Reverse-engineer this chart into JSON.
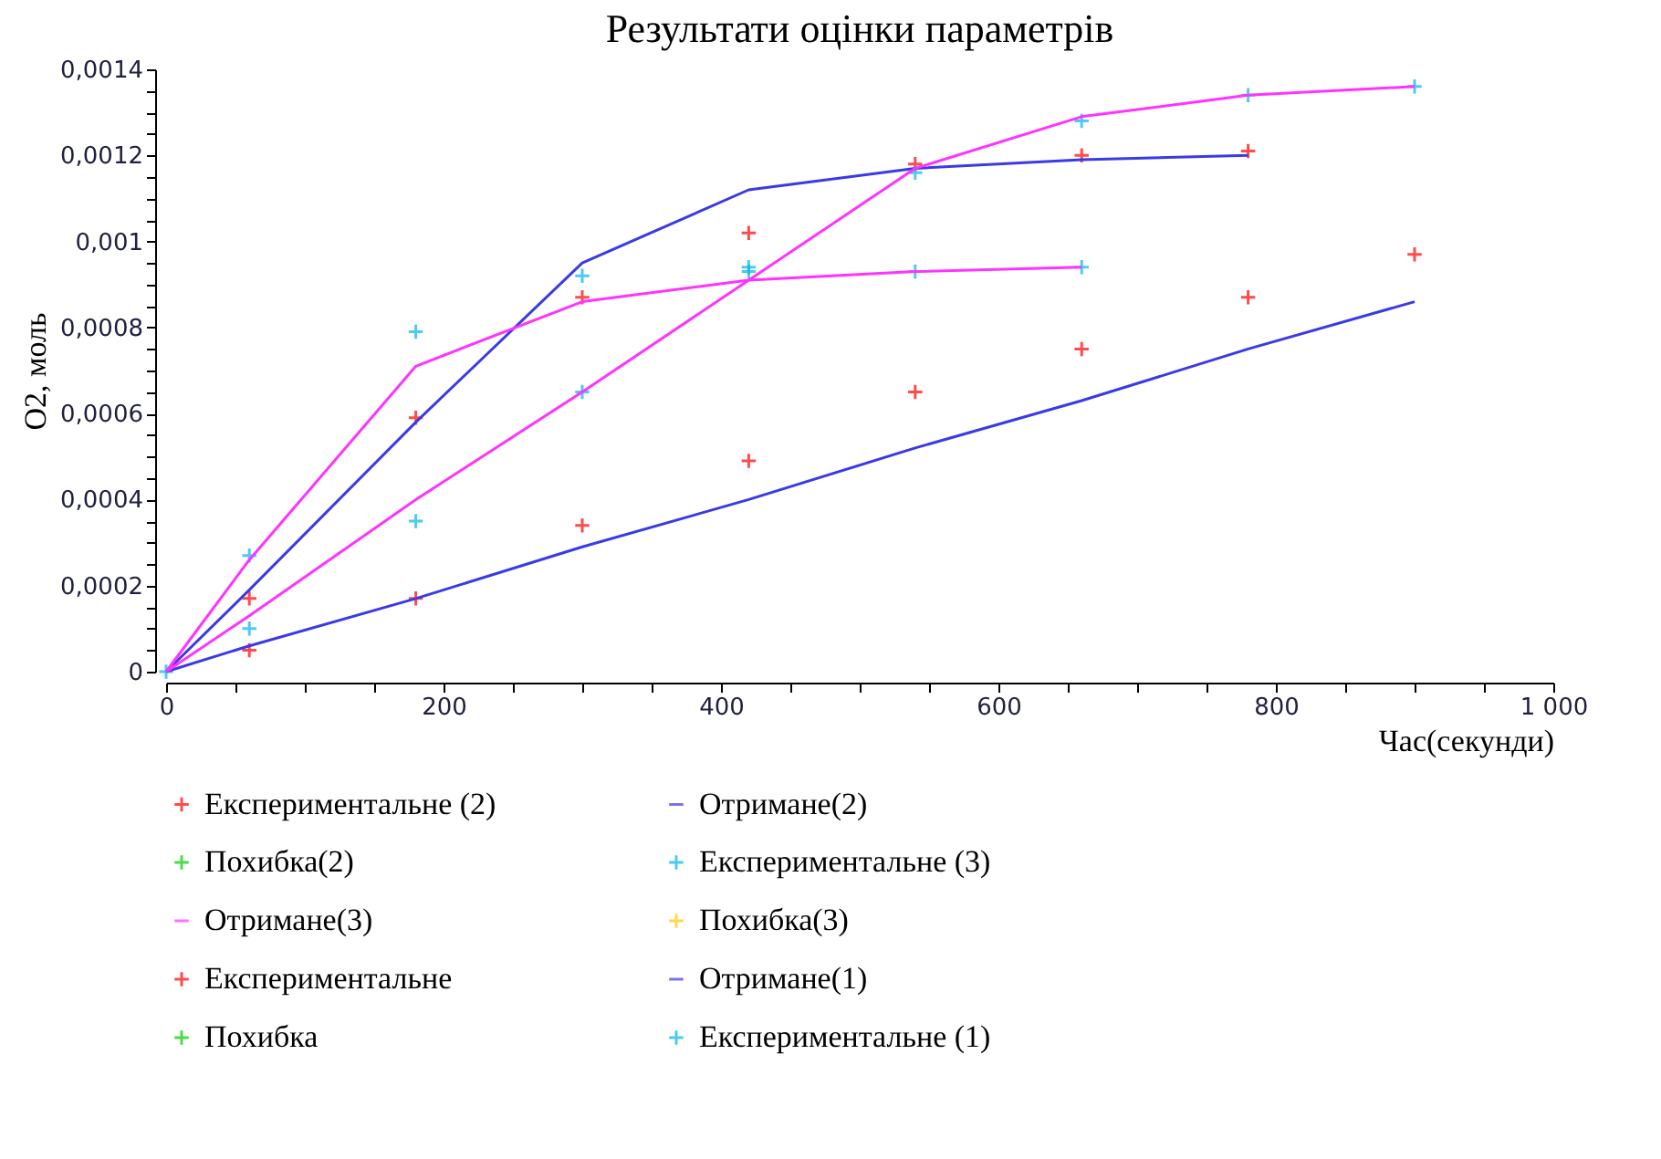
{
  "chart_data": {
    "type": "line",
    "title": "Результати оцінки параметрів",
    "xlabel": "Час(секунди)",
    "ylabel": "O2, моль",
    "xlim": [
      0,
      1000
    ],
    "ylim": [
      0,
      0.0014
    ],
    "xticks": [
      0,
      {
        "value": 50,
        "label": null
      },
      {
        "value": 100,
        "label": null
      },
      {
        "value": 150,
        "label": null
      },
      200,
      {
        "value": 250,
        "label": null
      },
      {
        "value": 300,
        "label": null
      },
      {
        "value": 350,
        "label": null
      },
      400,
      {
        "value": 450,
        "label": null
      },
      {
        "value": 500,
        "label": null
      },
      {
        "value": 550,
        "label": null
      },
      600,
      {
        "value": 650,
        "label": null
      },
      {
        "value": 700,
        "label": null
      },
      {
        "value": 750,
        "label": null
      },
      800,
      {
        "value": 850,
        "label": null
      },
      {
        "value": 900,
        "label": null
      },
      {
        "value": 950,
        "label": null
      },
      {
        "value": 1000,
        "label": "1 000"
      }
    ],
    "yticks": [
      0,
      {
        "value": 5e-05,
        "label": null
      },
      {
        "value": 0.0001,
        "label": null
      },
      {
        "value": 0.00015,
        "label": null
      },
      {
        "value": 0.0002,
        "label": "0,0002"
      },
      {
        "value": 0.00025,
        "label": null
      },
      {
        "value": 0.0003,
        "label": null
      },
      {
        "value": 0.00035,
        "label": null
      },
      {
        "value": 0.0004,
        "label": "0,0004"
      },
      {
        "value": 0.00045,
        "label": null
      },
      {
        "value": 0.0005,
        "label": null
      },
      {
        "value": 0.00055,
        "label": null
      },
      {
        "value": 0.0006,
        "label": "0,0006"
      },
      {
        "value": 0.00065,
        "label": null
      },
      {
        "value": 0.0007,
        "label": null
      },
      {
        "value": 0.00075,
        "label": null
      },
      {
        "value": 0.0008,
        "label": "0,0008"
      },
      {
        "value": 0.00085,
        "label": null
      },
      {
        "value": 0.0009,
        "label": null
      },
      {
        "value": 0.00095,
        "label": null
      },
      {
        "value": 0.001,
        "label": "0,001"
      },
      {
        "value": 0.00105,
        "label": null
      },
      {
        "value": 0.0011,
        "label": null
      },
      {
        "value": 0.00115,
        "label": null
      },
      {
        "value": 0.0012,
        "label": "0,0012"
      },
      {
        "value": 0.00125,
        "label": null
      },
      {
        "value": 0.0013,
        "label": null
      },
      {
        "value": 0.00135,
        "label": null
      },
      {
        "value": 0.0014,
        "label": "0,0014"
      }
    ],
    "grid": false,
    "legend": "bottom",
    "x": [
      0,
      60,
      180,
      300,
      420,
      540,
      660,
      780,
      900
    ],
    "series": [
      {
        "name": "Експериментальне (2)",
        "type": "scatter",
        "marker": "cross",
        "color": "#ff0000",
        "values": [
          null,
          0.00017,
          0.00059,
          0.00087,
          0.00102,
          0.00118,
          0.0012,
          0.00121,
          null
        ]
      },
      {
        "name": "Отримане(2)",
        "marker": "none",
        "line_style": "solid",
        "color": "#3a3ae6",
        "values": [
          0,
          0.00019,
          0.00058,
          0.00095,
          0.00112,
          0.00117,
          0.00119,
          0.0012,
          null
        ]
      },
      {
        "name": "Похибка(2)",
        "type": "scatter",
        "marker": "cross",
        "color": "#00cc00",
        "values": [
          null,
          null,
          null,
          null,
          null,
          null,
          null,
          null,
          null
        ]
      },
      {
        "name": "Експериментальне (3)",
        "type": "scatter",
        "marker": "cross",
        "color": "#00b4f0",
        "values": [
          0,
          0.00027,
          0.00079,
          0.00092,
          0.00094,
          0.00093,
          0.00094,
          null,
          null
        ]
      },
      {
        "name": "Отримане(3)",
        "marker": "none",
        "line_style": "solid",
        "color": "#ff33ff",
        "values": [
          0,
          0.00026,
          0.00071,
          0.00086,
          0.00091,
          0.00093,
          0.00094,
          null,
          null
        ]
      },
      {
        "name": "Похибка(3)",
        "type": "scatter",
        "marker": "cross",
        "color": "#ffc800",
        "values": [
          null,
          null,
          null,
          null,
          null,
          null,
          null,
          null,
          null
        ]
      },
      {
        "name": "Експериментальне",
        "type": "scatter",
        "marker": "cross",
        "color": "#ff0000",
        "values": [
          null,
          5e-05,
          0.00017,
          0.00034,
          0.00049,
          0.00065,
          0.00075,
          0.00087,
          0.00097
        ]
      },
      {
        "name": "Отримане(1)",
        "marker": "none",
        "line_style": "solid",
        "color": "#3a3ae6",
        "values": [
          0,
          6e-05,
          0.00017,
          0.00029,
          0.0004,
          0.00052,
          0.00063,
          0.00075,
          0.00086
        ]
      },
      {
        "name": "Похибка",
        "type": "scatter",
        "marker": "cross",
        "color": "#00cc00",
        "values": [
          null,
          null,
          null,
          null,
          null,
          null,
          null,
          null,
          null
        ]
      },
      {
        "name": "Експериментальне (1)",
        "type": "scatter",
        "marker": "cross",
        "color": "#00b4f0",
        "values": [
          null,
          0.0001,
          0.00035,
          0.00065,
          0.00093,
          0.00116,
          0.00128,
          0.00134,
          0.00136
        ]
      },
      {
        "marker": "none",
        "line_style": "solid",
        "color": "#ff33ff",
        "values": [
          0,
          0.00013,
          0.0004,
          0.00065,
          0.00091,
          0.00117,
          0.00129,
          0.00134,
          0.00136
        ]
      }
    ]
  }
}
